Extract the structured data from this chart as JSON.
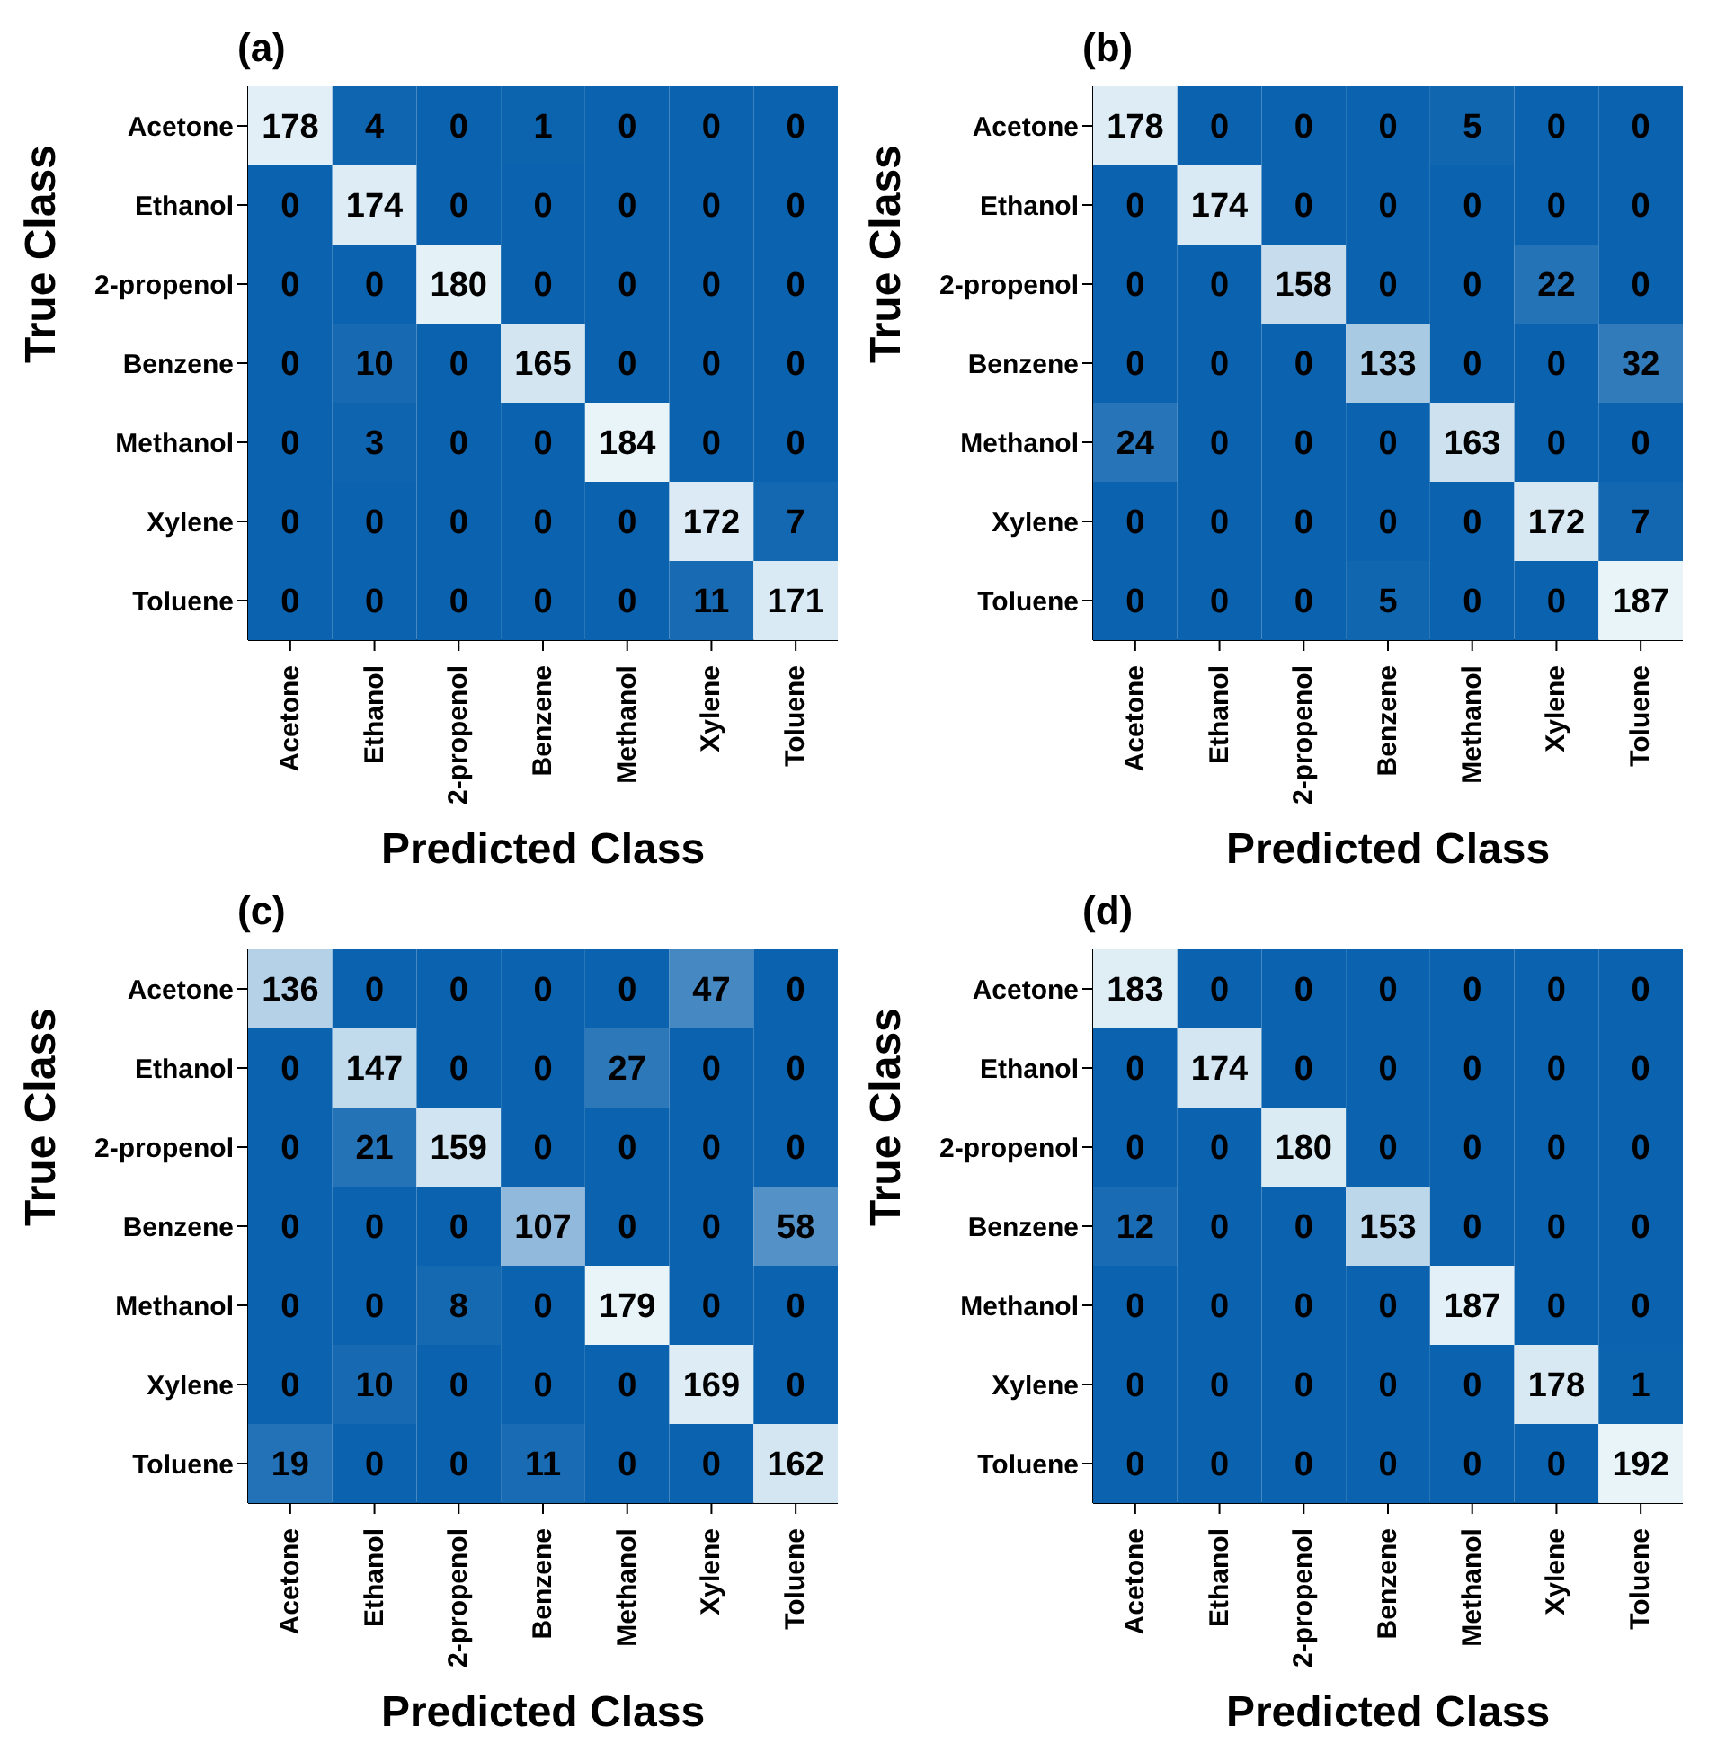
{
  "chart_data": [
    {
      "type": "heatmap",
      "title": "(a)",
      "xlabel": "Predicted Class",
      "ylabel": "True Class",
      "data_labels": true,
      "categories": [
        "Acetone",
        "Ethanol",
        "2-propenol",
        "Benzene",
        "Methanol",
        "Xylene",
        "Toluene"
      ],
      "y_categories": [
        "Acetone",
        "Ethanol",
        "2-propenol",
        "Benzene",
        "Methanol",
        "Xylene",
        "Toluene"
      ],
      "cells": [
        [
          178,
          4,
          0,
          1,
          0,
          0,
          0
        ],
        [
          0,
          174,
          0,
          0,
          0,
          0,
          0
        ],
        [
          0,
          0,
          180,
          0,
          0,
          0,
          0
        ],
        [
          0,
          10,
          0,
          165,
          0,
          0,
          0
        ],
        [
          0,
          3,
          0,
          0,
          184,
          0,
          0
        ],
        [
          0,
          0,
          0,
          0,
          0,
          172,
          7
        ],
        [
          0,
          0,
          0,
          0,
          0,
          11,
          171
        ]
      ]
    },
    {
      "type": "heatmap",
      "title": "(b)",
      "xlabel": "Predicted Class",
      "ylabel": "True Class",
      "data_labels": true,
      "categories": [
        "Acetone",
        "Ethanol",
        "2-propenol",
        "Benzene",
        "Methanol",
        "Xylene",
        "Toluene"
      ],
      "y_categories": [
        "Acetone",
        "Ethanol",
        "2-propenol",
        "Benzene",
        "Methanol",
        "Xylene",
        "Toluene"
      ],
      "cells": [
        [
          178,
          0,
          0,
          0,
          5,
          0,
          0
        ],
        [
          0,
          174,
          0,
          0,
          0,
          0,
          0
        ],
        [
          0,
          0,
          158,
          0,
          0,
          22,
          0
        ],
        [
          0,
          0,
          0,
          133,
          0,
          0,
          32
        ],
        [
          24,
          0,
          0,
          0,
          163,
          0,
          0
        ],
        [
          0,
          0,
          0,
          0,
          0,
          172,
          7
        ],
        [
          0,
          0,
          0,
          5,
          0,
          0,
          187
        ]
      ]
    },
    {
      "type": "heatmap",
      "title": "(c)",
      "xlabel": "Predicted Class",
      "ylabel": "True Class",
      "data_labels": true,
      "categories": [
        "Acetone",
        "Ethanol",
        "2-propenol",
        "Benzene",
        "Methanol",
        "Xylene",
        "Toluene"
      ],
      "y_categories": [
        "Acetone",
        "Ethanol",
        "2-propenol",
        "Benzene",
        "Methanol",
        "Xylene",
        "Toluene"
      ],
      "cells": [
        [
          136,
          0,
          0,
          0,
          0,
          47,
          0
        ],
        [
          0,
          147,
          0,
          0,
          27,
          0,
          0
        ],
        [
          0,
          21,
          159,
          0,
          0,
          0,
          0
        ],
        [
          0,
          0,
          0,
          107,
          0,
          0,
          58
        ],
        [
          0,
          0,
          8,
          0,
          179,
          0,
          0
        ],
        [
          0,
          10,
          0,
          0,
          0,
          169,
          0
        ],
        [
          19,
          0,
          0,
          11,
          0,
          0,
          162
        ]
      ]
    },
    {
      "type": "heatmap",
      "title": "(d)",
      "xlabel": "Predicted Class",
      "ylabel": "True Class",
      "data_labels": true,
      "categories": [
        "Acetone",
        "Ethanol",
        "2-propenol",
        "Benzene",
        "Methanol",
        "Xylene",
        "Toluene"
      ],
      "y_categories": [
        "Acetone",
        "Ethanol",
        "2-propenol",
        "Benzene",
        "Methanol",
        "Xylene",
        "Toluene"
      ],
      "cells": [
        [
          183,
          0,
          0,
          0,
          0,
          0,
          0
        ],
        [
          0,
          174,
          0,
          0,
          0,
          0,
          0
        ],
        [
          0,
          0,
          180,
          0,
          0,
          0,
          0
        ],
        [
          12,
          0,
          0,
          153,
          0,
          0,
          0
        ],
        [
          0,
          0,
          0,
          0,
          187,
          0,
          0
        ],
        [
          0,
          0,
          0,
          0,
          0,
          178,
          1
        ],
        [
          0,
          0,
          0,
          0,
          0,
          0,
          192
        ]
      ]
    }
  ]
}
